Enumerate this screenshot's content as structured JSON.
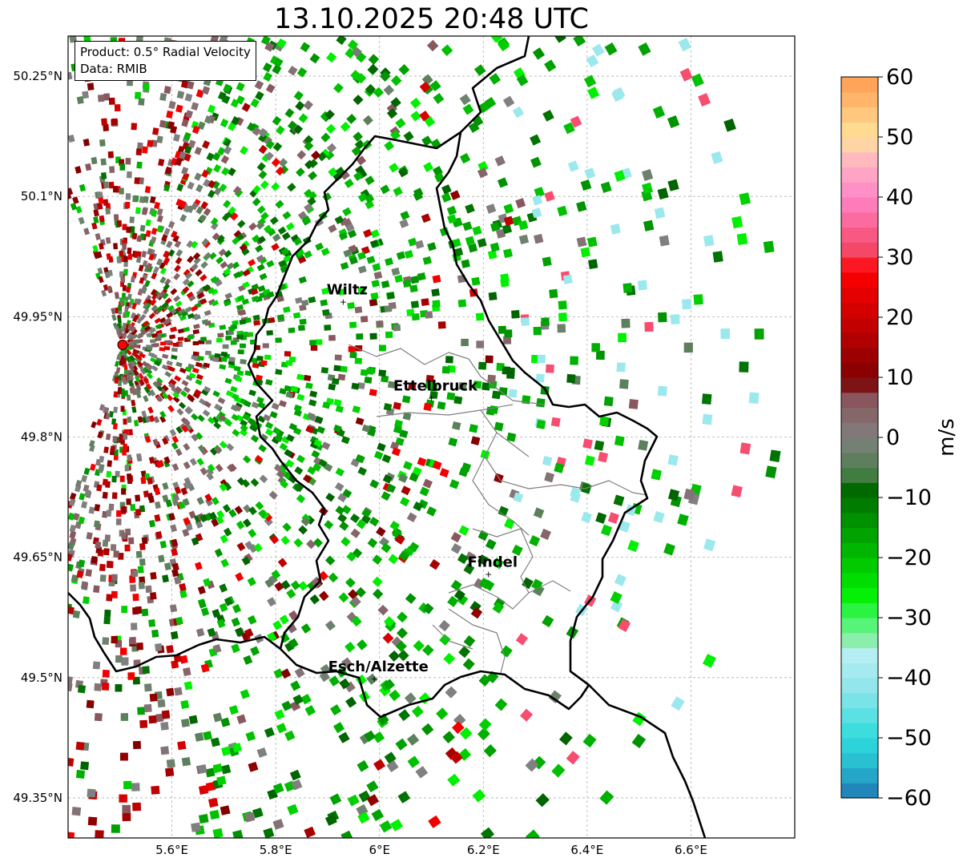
{
  "title": "13.10.2025 20:48 UTC",
  "info": {
    "product": "Product: 0.5° Radial Velocity",
    "source": "Data: RMIB"
  },
  "map": {
    "lon_range": [
      5.4,
      6.8
    ],
    "lat_range": [
      49.3,
      50.3
    ],
    "lon_ticks": [
      {
        "value": 5.6,
        "label": "5.6°E"
      },
      {
        "value": 5.8,
        "label": "5.8°E"
      },
      {
        "value": 6.0,
        "label": "6°E"
      },
      {
        "value": 6.2,
        "label": "6.2°E"
      },
      {
        "value": 6.4,
        "label": "6.4°E"
      },
      {
        "value": 6.6,
        "label": "6.6°E"
      }
    ],
    "lat_ticks": [
      {
        "value": 50.25,
        "label": "50.25°N"
      },
      {
        "value": 50.1,
        "label": "50.1°N"
      },
      {
        "value": 49.95,
        "label": "49.95°N"
      },
      {
        "value": 49.8,
        "label": "49.8°N"
      },
      {
        "value": 49.65,
        "label": "49.65°N"
      },
      {
        "value": 49.5,
        "label": "49.5°N"
      },
      {
        "value": 49.35,
        "label": "49.35°N"
      }
    ],
    "radar": {
      "lon": 5.505,
      "lat": 49.915
    },
    "cities": [
      {
        "name": "Wiltz",
        "lon": 5.93,
        "lat": 49.97
      },
      {
        "name": "Ettelbruck",
        "lon": 6.1,
        "lat": 49.85
      },
      {
        "name": "Findel",
        "lon": 6.21,
        "lat": 49.63
      },
      {
        "name": "Esch/Alzette",
        "lon": 5.99,
        "lat": 49.5
      }
    ]
  },
  "colorbar": {
    "label": "m/s",
    "min": -60,
    "max": 60,
    "ticks": [
      {
        "value": 60,
        "label": "60"
      },
      {
        "value": 50,
        "label": "50"
      },
      {
        "value": 40,
        "label": "40"
      },
      {
        "value": 30,
        "label": "30"
      },
      {
        "value": 20,
        "label": "20"
      },
      {
        "value": 10,
        "label": "10"
      },
      {
        "value": 0,
        "label": "0"
      },
      {
        "value": -10,
        "label": "−10"
      },
      {
        "value": -20,
        "label": "−20"
      },
      {
        "value": -30,
        "label": "−30"
      },
      {
        "value": -40,
        "label": "−40"
      },
      {
        "value": -50,
        "label": "−50"
      },
      {
        "value": -60,
        "label": "−60"
      }
    ],
    "stops": [
      {
        "value": -60,
        "color": "#1f77b4"
      },
      {
        "value": -55,
        "color": "#27b6cf"
      },
      {
        "value": -50,
        "color": "#2edcdc"
      },
      {
        "value": -42,
        "color": "#8ee5ea"
      },
      {
        "value": -36,
        "color": "#b6eef2"
      },
      {
        "value": -34,
        "color": "#90eeb0"
      },
      {
        "value": -30,
        "color": "#3ff560"
      },
      {
        "value": -26,
        "color": "#00f000"
      },
      {
        "value": -18,
        "color": "#00b000"
      },
      {
        "value": -8,
        "color": "#006400"
      },
      {
        "value": -6,
        "color": "#4a7f4a"
      },
      {
        "value": 0,
        "color": "#808080"
      },
      {
        "value": 8,
        "color": "#8a4a52"
      },
      {
        "value": 9,
        "color": "#7a0000"
      },
      {
        "value": 20,
        "color": "#cc0000"
      },
      {
        "value": 28,
        "color": "#ff0000"
      },
      {
        "value": 30,
        "color": "#f43f5a"
      },
      {
        "value": 40,
        "color": "#ff85c8"
      },
      {
        "value": 46,
        "color": "#ffb6c1"
      },
      {
        "value": 50,
        "color": "#ffe39a"
      },
      {
        "value": 60,
        "color": "#ff9b4f"
      }
    ]
  }
}
